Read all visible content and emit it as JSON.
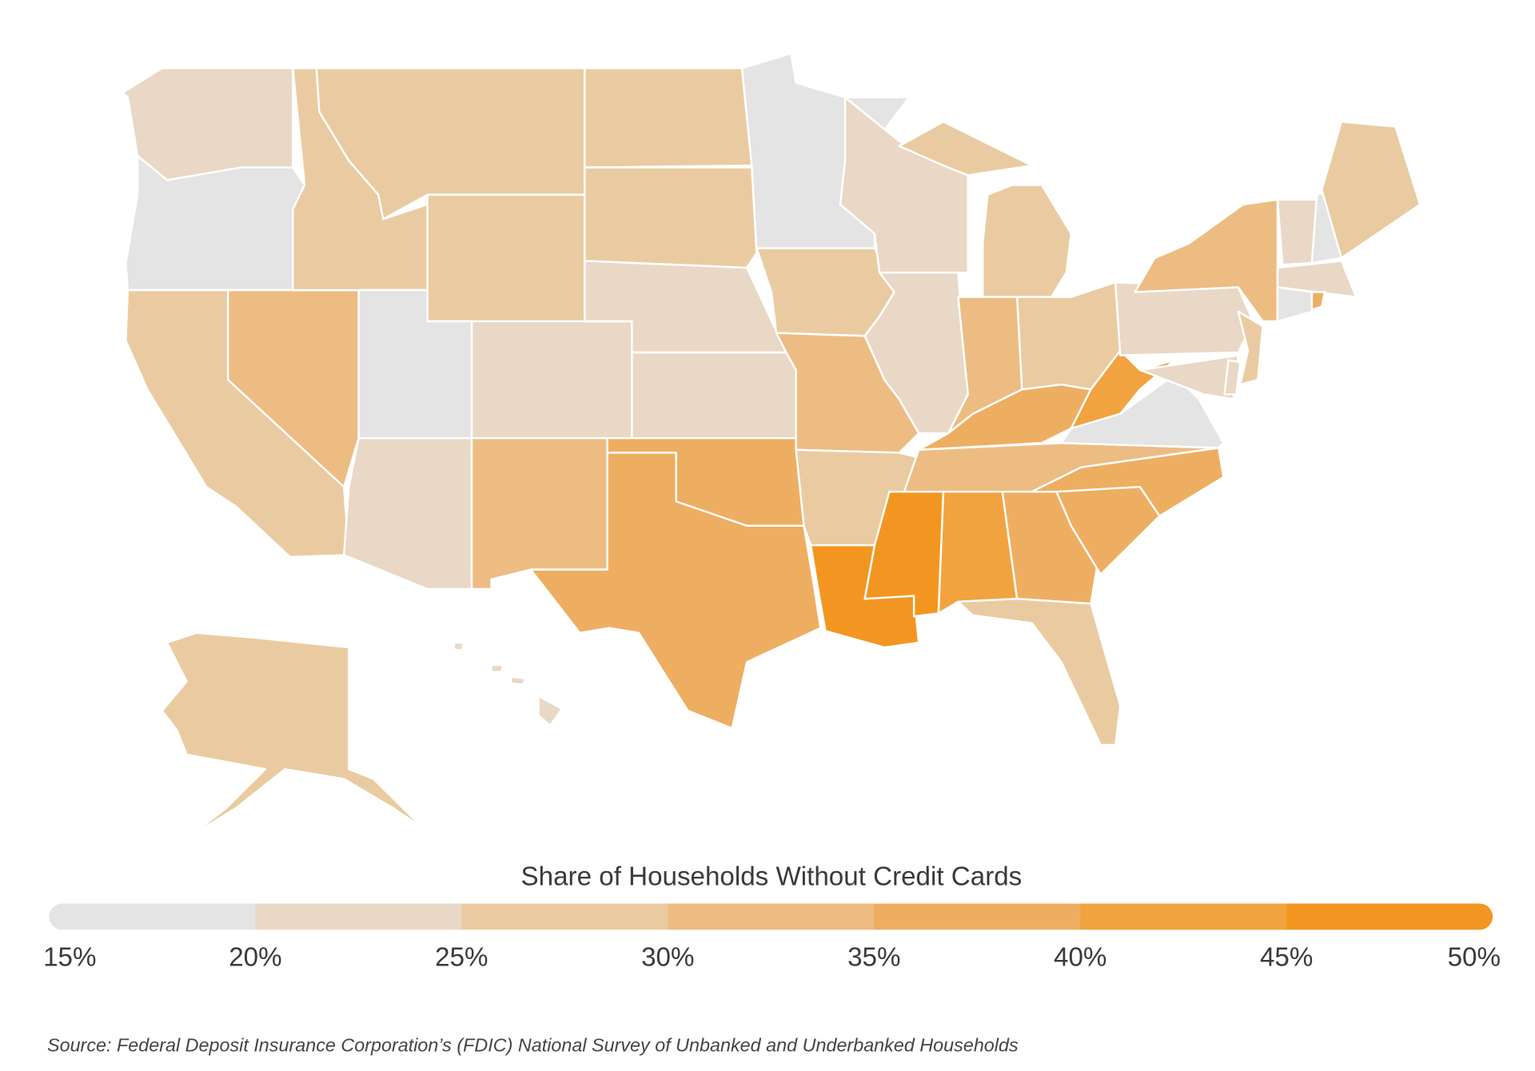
{
  "map": {
    "values": [
      22,
      18,
      27,
      32,
      27,
      27,
      27,
      18,
      22,
      22,
      32,
      27,
      27,
      22,
      22,
      37,
      37,
      18,
      27,
      32,
      27,
      47,
      22,
      22,
      27,
      32,
      27,
      37,
      32,
      47,
      42,
      37,
      27,
      37,
      37,
      18,
      42,
      22,
      32,
      22,
      22,
      27,
      22,
      18,
      27,
      22,
      18,
      37,
      27,
      22
    ]
  },
  "legend": {
    "title": "Share of Households Without Credit Cards",
    "ticks": [
      {
        "value": 15,
        "label": "15%"
      },
      {
        "value": 20,
        "label": "20%"
      },
      {
        "value": 25,
        "label": "25%"
      },
      {
        "value": 30,
        "label": "30%"
      },
      {
        "value": 35,
        "label": "35%"
      },
      {
        "value": 40,
        "label": "40%"
      },
      {
        "value": 45,
        "label": "45%"
      },
      {
        "value": 50,
        "label": "50%"
      }
    ],
    "colors": [
      "#e4e4e4",
      "#e9d8c6",
      "#eacba1",
      "#edbc83",
      "#eeae62",
      "#f1a340",
      "#f39621"
    ]
  },
  "source": "Source: Federal Deposit Insurance Corporation’s (FDIC) National Survey of Unbanked and Underbanked Households"
}
